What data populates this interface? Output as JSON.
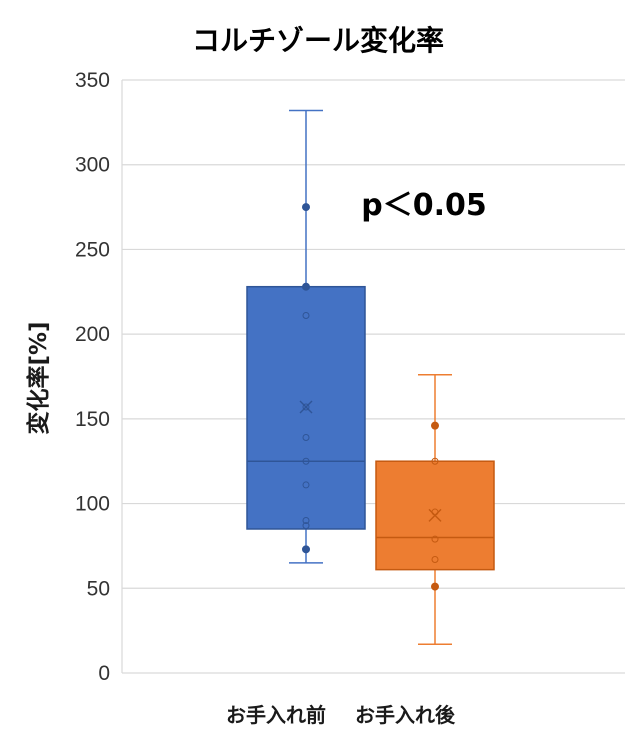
{
  "chart_data": {
    "type": "box",
    "title": "コルチゾール変化率",
    "xlabel": "",
    "ylabel": "変化率[%]",
    "ylim": [
      0,
      350
    ],
    "yticks": [
      "0",
      "50",
      "100",
      "150",
      "200",
      "250",
      "300",
      "350"
    ],
    "grid": "horizontal",
    "annotation": "p＜0.05",
    "categories": [
      "お手入れ前",
      "お手入れ後"
    ],
    "series": [
      {
        "color": "#4472C4",
        "stroke": "#2F5597",
        "min": 65,
        "q1": 85,
        "median": 125,
        "q3": 228,
        "max": 332,
        "mean": 157,
        "points": [
          73,
          87,
          90,
          111,
          125,
          139,
          157,
          211,
          228,
          275
        ],
        "outliers_filled": [
          73,
          228,
          275
        ]
      },
      {
        "color": "#ED7D31",
        "stroke": "#C55A11",
        "min": 17,
        "q1": 61,
        "median": 80,
        "q3": 125,
        "max": 176,
        "mean": 93,
        "points": [
          51,
          67,
          79,
          95,
          125,
          146
        ],
        "outliers_filled": [
          51,
          146
        ]
      }
    ]
  }
}
